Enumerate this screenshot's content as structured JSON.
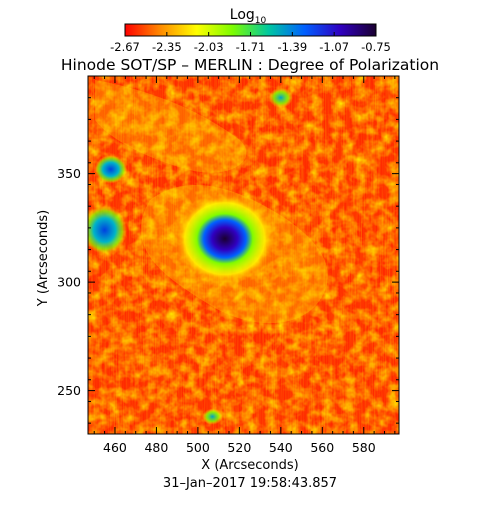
{
  "colorbar": {
    "label_base": "Log",
    "label_sub": "10",
    "ticks": [
      "-2.67",
      "-2.35",
      "-2.03",
      "-1.71",
      "-1.39",
      "-1.07",
      "-0.75"
    ],
    "range": [
      -2.67,
      -0.75
    ],
    "colormap": [
      "#ff0000",
      "#ff8c00",
      "#ffff00",
      "#7cfc00",
      "#00c8a0",
      "#0060ff",
      "#3000c0",
      "#1a0030"
    ]
  },
  "title": "Hinode SOT/SP – MERLIN : Degree of Polarization",
  "plot": {
    "x_axis_label": "X (Arcseconds)",
    "y_axis_label": "Y (Arcseconds)",
    "x_tick_labels": [
      "460",
      "480",
      "500",
      "520",
      "540",
      "560",
      "580"
    ],
    "y_tick_labels": [
      "250",
      "300",
      "350"
    ],
    "x_range": [
      447,
      597
    ],
    "y_range": [
      230,
      395
    ],
    "background_level": -2.55,
    "features": [
      {
        "name": "sunspot-umbra",
        "x": 513,
        "y": 320,
        "value": -0.75
      },
      {
        "name": "sunspot-penumbra",
        "x": 513,
        "y": 320,
        "value": -1.3
      },
      {
        "name": "plage-west",
        "x": 455,
        "y": 324,
        "value": -1.39
      },
      {
        "name": "plage-northwest",
        "x": 458,
        "y": 352,
        "value": -1.5
      },
      {
        "name": "patch-north",
        "x": 540,
        "y": 385,
        "value": -1.6
      },
      {
        "name": "patch-south",
        "x": 507,
        "y": 238,
        "value": -1.7
      }
    ]
  },
  "timestamp": "31–Jan–2017 19:58:43.857"
}
